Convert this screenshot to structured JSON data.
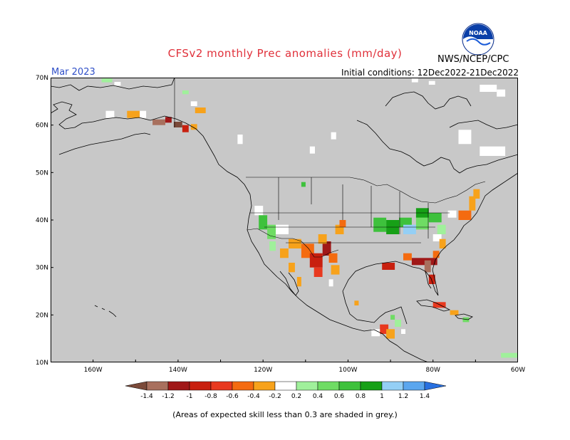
{
  "header": {
    "title": "CFSv2 monthly Prec anomalies (mm/day)",
    "month": "Mar 2023",
    "initial_conditions": "Initial conditions: 12Dec2022-21Dec2022",
    "agency": "NWS/NCEP/CPC",
    "logo_text": "NOAA"
  },
  "map": {
    "lat_ticks": [
      "70N",
      "60N",
      "50N",
      "40N",
      "30N",
      "20N",
      "10N"
    ],
    "lon_ticks": [
      "160W",
      "140W",
      "120W",
      "100W",
      "80W",
      "60W"
    ],
    "extent": {
      "lon_min": -170,
      "lon_max": -60,
      "lat_min": 10,
      "lat_max": 70
    },
    "mask_color": "#c8c8c8",
    "colors": {
      "n14": "#7b4a3a",
      "n12": "#a8705e",
      "n10": "#a01818",
      "n08": "#c8200f",
      "n06": "#e8391f",
      "n04": "#f46b10",
      "n02": "#f7a21b",
      "p02": "#a0f09b",
      "p04": "#6fdc64",
      "p06": "#3ec13c",
      "p08": "#17a017",
      "p10": "#94cff5",
      "p12": "#5ba6ee",
      "p14": "#2870e0"
    },
    "anomaly_cells": [
      {
        "lon": -157,
        "lat": 61.5,
        "w": 2,
        "h": 1.5,
        "c": "white"
      },
      {
        "lon": -152,
        "lat": 61.5,
        "w": 3,
        "h": 1.5,
        "c": "n02"
      },
      {
        "lon": -149,
        "lat": 61.5,
        "w": 1.5,
        "h": 1.5,
        "c": "white"
      },
      {
        "lon": -146,
        "lat": 60,
        "w": 3,
        "h": 1.2,
        "c": "n12"
      },
      {
        "lon": -143,
        "lat": 60.5,
        "w": 1.5,
        "h": 1.2,
        "c": "n10"
      },
      {
        "lon": -141,
        "lat": 59.5,
        "w": 2,
        "h": 1.2,
        "c": "n14"
      },
      {
        "lon": -139,
        "lat": 58.5,
        "w": 1.5,
        "h": 1.5,
        "c": "n08"
      },
      {
        "lon": -137,
        "lat": 59,
        "w": 1.5,
        "h": 1.2,
        "c": "n02"
      },
      {
        "lon": -136,
        "lat": 62.5,
        "w": 2.5,
        "h": 1.2,
        "c": "n02"
      },
      {
        "lon": -137,
        "lat": 64,
        "w": 1.5,
        "h": 1.0,
        "c": "white"
      },
      {
        "lon": -158,
        "lat": 69,
        "w": 2.5,
        "h": 0.8,
        "c": "p02"
      },
      {
        "lon": -155,
        "lat": 68.3,
        "w": 1.5,
        "h": 0.8,
        "c": "white"
      },
      {
        "lon": -139,
        "lat": 66.5,
        "w": 1.5,
        "h": 0.8,
        "c": "p02"
      },
      {
        "lon": -126,
        "lat": 56,
        "w": 1.2,
        "h": 2,
        "c": "white"
      },
      {
        "lon": -109,
        "lat": 54,
        "w": 1.2,
        "h": 1.5,
        "c": "white"
      },
      {
        "lon": -104,
        "lat": 57,
        "w": 1.2,
        "h": 1.5,
        "c": "white"
      },
      {
        "lon": -74,
        "lat": 56,
        "w": 3,
        "h": 3,
        "c": "white"
      },
      {
        "lon": -69,
        "lat": 53.5,
        "w": 6,
        "h": 2,
        "c": "white"
      },
      {
        "lon": -69,
        "lat": 67,
        "w": 4,
        "h": 1.5,
        "c": "white"
      },
      {
        "lon": -65,
        "lat": 66,
        "w": 2,
        "h": 1.5,
        "c": "white"
      },
      {
        "lon": -85,
        "lat": 69,
        "w": 1.5,
        "h": 0.8,
        "c": "white"
      },
      {
        "lon": -81,
        "lat": 68.5,
        "w": 1.5,
        "h": 0.8,
        "c": "white"
      },
      {
        "lon": -111,
        "lat": 47,
        "w": 1,
        "h": 1,
        "c": "p06"
      },
      {
        "lon": -122,
        "lat": 41,
        "w": 2,
        "h": 2,
        "c": "white"
      },
      {
        "lon": -121,
        "lat": 38,
        "w": 2,
        "h": 3,
        "c": "p06"
      },
      {
        "lon": -119,
        "lat": 36,
        "w": 2,
        "h": 3,
        "c": "p04"
      },
      {
        "lon": -118.5,
        "lat": 33.5,
        "w": 1.5,
        "h": 2,
        "c": "p02"
      },
      {
        "lon": -117,
        "lat": 37,
        "w": 3,
        "h": 2,
        "c": "white"
      },
      {
        "lon": -116,
        "lat": 32,
        "w": 2,
        "h": 2,
        "c": "n02"
      },
      {
        "lon": -114,
        "lat": 29,
        "w": 1.5,
        "h": 2,
        "c": "n02"
      },
      {
        "lon": -112,
        "lat": 26,
        "w": 1,
        "h": 2,
        "c": "n02"
      },
      {
        "lon": -114,
        "lat": 34,
        "w": 3,
        "h": 2,
        "c": "n02"
      },
      {
        "lon": -111,
        "lat": 32,
        "w": 3,
        "h": 3,
        "c": "n04"
      },
      {
        "lon": -109,
        "lat": 30,
        "w": 3,
        "h": 3,
        "c": "n08"
      },
      {
        "lon": -106,
        "lat": 32.5,
        "w": 2,
        "h": 3,
        "c": "n10"
      },
      {
        "lon": -104.5,
        "lat": 31,
        "w": 2,
        "h": 2,
        "c": "n04"
      },
      {
        "lon": -107,
        "lat": 35,
        "w": 2,
        "h": 2,
        "c": "n02"
      },
      {
        "lon": -104,
        "lat": 28.5,
        "w": 2,
        "h": 2,
        "c": "n02"
      },
      {
        "lon": -108,
        "lat": 28,
        "w": 2,
        "h": 2,
        "c": "n06"
      },
      {
        "lon": -103,
        "lat": 37,
        "w": 2,
        "h": 2,
        "c": "n02"
      },
      {
        "lon": -102,
        "lat": 38.5,
        "w": 1.5,
        "h": 1.5,
        "c": "n04"
      },
      {
        "lon": -94,
        "lat": 37.5,
        "w": 3,
        "h": 3,
        "c": "p06"
      },
      {
        "lon": -91,
        "lat": 37,
        "w": 3,
        "h": 3,
        "c": "p08"
      },
      {
        "lon": -88,
        "lat": 38.5,
        "w": 3,
        "h": 2,
        "c": "p06"
      },
      {
        "lon": -87,
        "lat": 37,
        "w": 3,
        "h": 2,
        "c": "p10"
      },
      {
        "lon": -84,
        "lat": 38,
        "w": 3,
        "h": 3,
        "c": "p04"
      },
      {
        "lon": -81,
        "lat": 39.5,
        "w": 3,
        "h": 2,
        "c": "p06"
      },
      {
        "lon": -84,
        "lat": 40.5,
        "w": 3,
        "h": 2,
        "c": "p08"
      },
      {
        "lon": -79,
        "lat": 37,
        "w": 2,
        "h": 2,
        "c": "p02"
      },
      {
        "lon": -80,
        "lat": 35.5,
        "w": 2,
        "h": 1.5,
        "c": "white"
      },
      {
        "lon": -78.5,
        "lat": 34,
        "w": 1.5,
        "h": 2,
        "c": "n02"
      },
      {
        "lon": -80,
        "lat": 32,
        "w": 1.5,
        "h": 1.5,
        "c": "n04"
      },
      {
        "lon": -85,
        "lat": 30.5,
        "w": 6,
        "h": 1.5,
        "c": "n10"
      },
      {
        "lon": -92,
        "lat": 29.5,
        "w": 3,
        "h": 1.5,
        "c": "n08"
      },
      {
        "lon": -87,
        "lat": 31.5,
        "w": 2,
        "h": 1.5,
        "c": "n04"
      },
      {
        "lon": -82,
        "lat": 29,
        "w": 1.5,
        "h": 2.5,
        "c": "n12"
      },
      {
        "lon": -81,
        "lat": 26.5,
        "w": 1.5,
        "h": 2,
        "c": "n08"
      },
      {
        "lon": -74,
        "lat": 40,
        "w": 3,
        "h": 2,
        "c": "n04"
      },
      {
        "lon": -71.5,
        "lat": 42,
        "w": 1.5,
        "h": 3,
        "c": "n02"
      },
      {
        "lon": -70.5,
        "lat": 44.5,
        "w": 1.5,
        "h": 2,
        "c": "n02"
      },
      {
        "lon": -76.5,
        "lat": 40.5,
        "w": 2,
        "h": 1.5,
        "c": "white"
      },
      {
        "lon": -80,
        "lat": 21.5,
        "w": 3,
        "h": 1.2,
        "c": "n06"
      },
      {
        "lon": -76,
        "lat": 20,
        "w": 2,
        "h": 1,
        "c": "n02"
      },
      {
        "lon": -73,
        "lat": 18.5,
        "w": 1.5,
        "h": 1,
        "c": "p04"
      },
      {
        "lon": -92.5,
        "lat": 16,
        "w": 2,
        "h": 2,
        "c": "n06"
      },
      {
        "lon": -91,
        "lat": 15,
        "w": 2,
        "h": 2,
        "c": "n02"
      },
      {
        "lon": -89,
        "lat": 17.5,
        "w": 1.5,
        "h": 1.5,
        "c": "p02"
      },
      {
        "lon": -87.5,
        "lat": 16,
        "w": 1,
        "h": 1,
        "c": "white"
      },
      {
        "lon": -94.5,
        "lat": 15.5,
        "w": 2,
        "h": 1.5,
        "c": "white"
      },
      {
        "lon": -98.5,
        "lat": 22,
        "w": 1,
        "h": 1,
        "c": "n02"
      },
      {
        "lon": -90,
        "lat": 19,
        "w": 1,
        "h": 1,
        "c": "p04"
      },
      {
        "lon": -104.5,
        "lat": 26,
        "w": 1,
        "h": 1.5,
        "c": "white"
      },
      {
        "lon": -64,
        "lat": 11,
        "w": 4,
        "h": 1,
        "c": "p02"
      }
    ]
  },
  "legend": {
    "labels": [
      "-1.4",
      "-1.2",
      "-1",
      "-0.8",
      "-0.6",
      "-0.4",
      "-0.2",
      "0.2",
      "0.4",
      "0.6",
      "0.8",
      "1",
      "1.2",
      "1.4"
    ],
    "colors": [
      "#7b4a3a",
      "#a8705e",
      "#a01818",
      "#c8200f",
      "#e8391f",
      "#f46b10",
      "#f7a21b",
      "#ffffff",
      "#a0f09b",
      "#6fdc64",
      "#3ec13c",
      "#17a017",
      "#94cff5",
      "#5ba6ee",
      "#2870e0"
    ]
  },
  "footnote": "(Areas of expected skill less than 0.3 are shaded in grey.)"
}
